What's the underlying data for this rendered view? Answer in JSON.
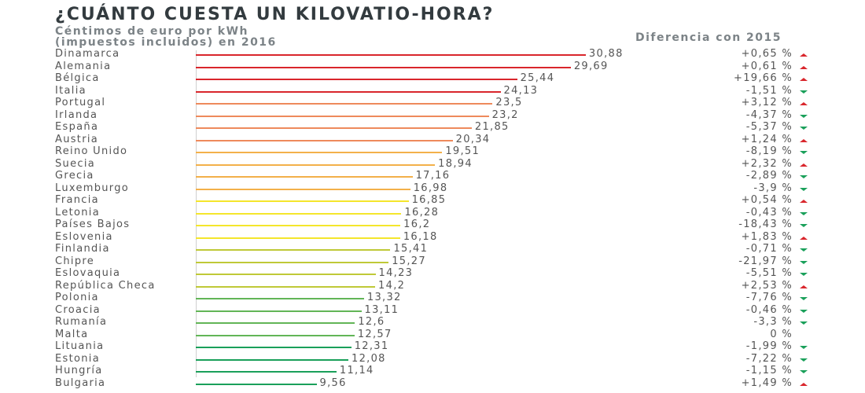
{
  "chart_data": {
    "type": "bar",
    "orientation": "horizontal",
    "title": "¿CUÁNTO CUESTA UN KILOVATIO-HORA?",
    "subtitle_lines": [
      "Céntimos de euro por kWh",
      "(impuestos incluidos) en 2016"
    ],
    "diff_header": "Diferencia con 2015",
    "xlim": [
      0,
      31
    ],
    "grid": false,
    "up_color": "#d9262c",
    "down_color": "#1aa05a",
    "rows": [
      {
        "country": "Dinamarca",
        "value": 30.88,
        "label": "30,88",
        "diff": "+0,65 %",
        "trend": "up",
        "color": "#d9262c"
      },
      {
        "country": "Alemania",
        "value": 29.69,
        "label": "29,69",
        "diff": "+0,61 %",
        "trend": "up",
        "color": "#d9262c"
      },
      {
        "country": "Bélgica",
        "value": 25.44,
        "label": "25,44",
        "diff": "+19,66 %",
        "trend": "up",
        "color": "#d9262c"
      },
      {
        "country": "Italia",
        "value": 24.13,
        "label": "24,13",
        "diff": "-1,51 %",
        "trend": "down",
        "color": "#d9262c"
      },
      {
        "country": "Portugal",
        "value": 23.5,
        "label": "23,5",
        "diff": "+3,12 %",
        "trend": "up",
        "color": "#ee8a5c"
      },
      {
        "country": "Irlanda",
        "value": 23.2,
        "label": "23,2",
        "diff": "-4,37 %",
        "trend": "down",
        "color": "#ee8a5c"
      },
      {
        "country": "España",
        "value": 21.85,
        "label": "21,85",
        "diff": "-5,37 %",
        "trend": "down",
        "color": "#ee8a5c"
      },
      {
        "country": "Austria",
        "value": 20.34,
        "label": "20,34",
        "diff": "+1,24 %",
        "trend": "up",
        "color": "#ee8a5c"
      },
      {
        "country": "Reino Unido",
        "value": 19.51,
        "label": "19,51",
        "diff": "-8,19 %",
        "trend": "down",
        "color": "#f3b04a"
      },
      {
        "country": "Suecia",
        "value": 18.94,
        "label": "18,94",
        "diff": "+2,32 %",
        "trend": "up",
        "color": "#f3b04a"
      },
      {
        "country": "Grecia",
        "value": 17.16,
        "label": "17,16",
        "diff": "-2,89 %",
        "trend": "down",
        "color": "#f3b04a"
      },
      {
        "country": "Luxemburgo",
        "value": 16.98,
        "label": "16,98",
        "diff": "-3,9 %",
        "trend": "down",
        "color": "#f3b04a"
      },
      {
        "country": "Francia",
        "value": 16.85,
        "label": "16,85",
        "diff": "+0,54 %",
        "trend": "up",
        "color": "#f4e62c"
      },
      {
        "country": "Letonia",
        "value": 16.28,
        "label": "16,28",
        "diff": "-0,43 %",
        "trend": "down",
        "color": "#f4e62c"
      },
      {
        "country": "Países Bajos",
        "value": 16.2,
        "label": "16,2",
        "diff": "-18,43 %",
        "trend": "down",
        "color": "#f4e62c"
      },
      {
        "country": "Eslovenia",
        "value": 16.18,
        "label": "16,18",
        "diff": "+1,83 %",
        "trend": "up",
        "color": "#f4e62c"
      },
      {
        "country": "Finlandia",
        "value": 15.41,
        "label": "15,41",
        "diff": "-0,71 %",
        "trend": "down",
        "color": "#bfc937"
      },
      {
        "country": "Chipre",
        "value": 15.27,
        "label": "15,27",
        "diff": "-21,97 %",
        "trend": "down",
        "color": "#bfc937"
      },
      {
        "country": "Eslovaquia",
        "value": 14.23,
        "label": "14,23",
        "diff": "-5,51 %",
        "trend": "down",
        "color": "#bfc937"
      },
      {
        "country": "República Checa",
        "value": 14.2,
        "label": "14,2",
        "diff": "+2,53 %",
        "trend": "up",
        "color": "#bfc937"
      },
      {
        "country": "Polonia",
        "value": 13.32,
        "label": "13,32",
        "diff": "-7,76 %",
        "trend": "down",
        "color": "#62b557"
      },
      {
        "country": "Croacia",
        "value": 13.11,
        "label": "13,11",
        "diff": "-0,46 %",
        "trend": "down",
        "color": "#62b557"
      },
      {
        "country": "Rumanía",
        "value": 12.6,
        "label": "12,6",
        "diff": "-3,3 %",
        "trend": "down",
        "color": "#62b557"
      },
      {
        "country": "Malta",
        "value": 12.57,
        "label": "12,57",
        "diff": "0 %",
        "trend": "none",
        "color": "#62b557"
      },
      {
        "country": "Lituania",
        "value": 12.31,
        "label": "12,31",
        "diff": "-1,99 %",
        "trend": "down",
        "color": "#1aa05a"
      },
      {
        "country": "Estonia",
        "value": 12.08,
        "label": "12,08",
        "diff": "-7,22 %",
        "trend": "down",
        "color": "#1aa05a"
      },
      {
        "country": "Hungría",
        "value": 11.14,
        "label": "11,14",
        "diff": "-1,15 %",
        "trend": "down",
        "color": "#1aa05a"
      },
      {
        "country": "Bulgaria",
        "value": 9.56,
        "label": "9,56",
        "diff": "+1,49 %",
        "trend": "up",
        "color": "#1aa05a"
      }
    ]
  }
}
